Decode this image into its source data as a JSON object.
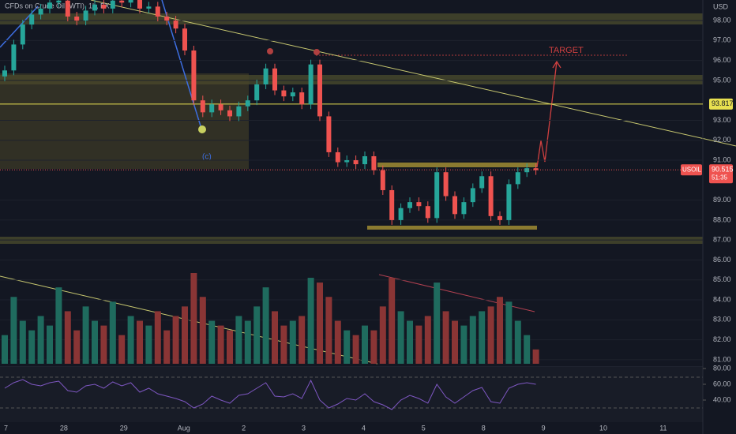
{
  "chart_data": {
    "type": "candlestick",
    "title": "CFDs on Crude Oil (WTI), 1h, FX",
    "currency": "USD",
    "annotations": {
      "target": "TARGET",
      "wave": "(c)"
    },
    "ylim": [
      80.64,
      99.03
    ],
    "yticks": [
      {
        "value": 98,
        "label": "98.00"
      },
      {
        "value": 97,
        "label": "97.00"
      },
      {
        "value": 96,
        "label": "96.00"
      },
      {
        "value": 95,
        "label": "95.00"
      },
      {
        "value": 93,
        "label": "93.00"
      },
      {
        "value": 92,
        "label": "92.00"
      },
      {
        "value": 91,
        "label": "91.00"
      },
      {
        "value": 89,
        "label": "89.00"
      },
      {
        "value": 88,
        "label": "88.00"
      },
      {
        "value": 87,
        "label": "87.00"
      },
      {
        "value": 86,
        "label": "86.00"
      },
      {
        "value": 85,
        "label": "85.00"
      },
      {
        "value": 84,
        "label": "84.00"
      },
      {
        "value": 83,
        "label": "83.00"
      },
      {
        "value": 82,
        "label": "82.00"
      },
      {
        "value": 81,
        "label": "81.00"
      }
    ],
    "level": 93.817,
    "last_price": {
      "symbol": "USOIL",
      "value": 90.515,
      "countdown": "51:35"
    },
    "x_labels": [
      "7",
      "28",
      "29",
      "Aug",
      "2",
      "3",
      "4",
      "5",
      "8",
      "9",
      "10",
      "11"
    ],
    "values": [
      95.5,
      96.8,
      97.8,
      98.3,
      98.6,
      98.9,
      99.0,
      98.2,
      98.0,
      98.5,
      98.8,
      98.6,
      99.0,
      98.9,
      99.1,
      98.6,
      98.7,
      98.2,
      98.0,
      97.6,
      96.5,
      94.0,
      93.4,
      93.8,
      93.5,
      93.2,
      93.7,
      94.0,
      94.8,
      95.6,
      94.5,
      94.2,
      94.4,
      93.8,
      95.8,
      93.2,
      91.4,
      90.9,
      91.0,
      90.8,
      91.2,
      90.5,
      89.5,
      88.0,
      88.6,
      88.9,
      88.7,
      88.1,
      90.4,
      89.2,
      88.3,
      88.9,
      89.6,
      90.2,
      88.2,
      88.0,
      89.8,
      90.4,
      90.6,
      90.5
    ],
    "volume": [
      30,
      70,
      45,
      35,
      50,
      40,
      80,
      55,
      35,
      60,
      45,
      40,
      65,
      30,
      50,
      45,
      40,
      55,
      35,
      50,
      60,
      95,
      70,
      45,
      40,
      35,
      50,
      45,
      60,
      80,
      55,
      40,
      45,
      50,
      90,
      85,
      70,
      45,
      35,
      30,
      40,
      35,
      60,
      90,
      55,
      45,
      40,
      50,
      85,
      55,
      45,
      40,
      50,
      55,
      60,
      70,
      65,
      45,
      30,
      15
    ],
    "y2lim": [
      12,
      82
    ],
    "y2ticks": [
      {
        "value": 80,
        "label": "80.00"
      },
      {
        "value": 60,
        "label": "60.00"
      },
      {
        "value": 40,
        "label": "40.00"
      }
    ],
    "rsi": [
      55,
      62,
      66,
      60,
      58,
      62,
      64,
      52,
      50,
      58,
      60,
      55,
      63,
      58,
      62,
      50,
      55,
      48,
      45,
      42,
      38,
      30,
      35,
      45,
      40,
      36,
      46,
      48,
      55,
      62,
      45,
      44,
      48,
      42,
      65,
      40,
      30,
      35,
      42,
      40,
      48,
      38,
      34,
      28,
      40,
      46,
      42,
      36,
      60,
      44,
      36,
      44,
      52,
      56,
      38,
      36,
      55,
      60,
      62,
      60
    ]
  }
}
